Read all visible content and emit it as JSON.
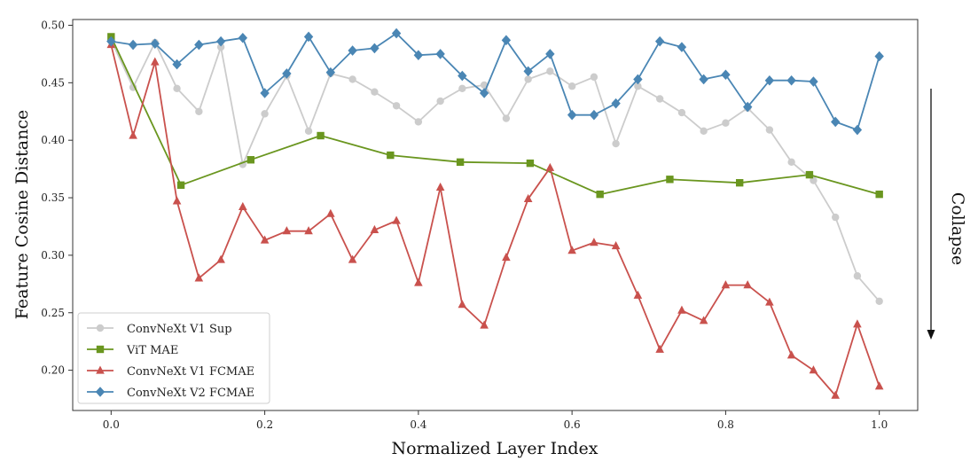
{
  "chart_data": {
    "type": "line",
    "title": "",
    "xlabel": "Normalized Layer Index",
    "ylabel": "Feature Cosine Distance",
    "xlim": [
      -0.05,
      1.05
    ],
    "ylim": [
      0.165,
      0.505
    ],
    "xticks": [
      0.0,
      0.2,
      0.4,
      0.6,
      0.8,
      1.0
    ],
    "xtick_labels": [
      "0.0",
      "0.2",
      "0.4",
      "0.6",
      "0.8",
      "1.0"
    ],
    "yticks": [
      0.2,
      0.25,
      0.3,
      0.35,
      0.4,
      0.45,
      0.5
    ],
    "ytick_labels": [
      "0.20",
      "0.25",
      "0.30",
      "0.35",
      "0.40",
      "0.45",
      "0.50"
    ],
    "grid": false,
    "legend_position": "lower-left",
    "side_annotation": "Collapse",
    "series": [
      {
        "name": "ConvNeXt V1 Sup",
        "color": "#cccccc",
        "marker": "circle",
        "x": [
          0.0,
          0.0286,
          0.0571,
          0.0857,
          0.1143,
          0.1429,
          0.1714,
          0.2,
          0.2286,
          0.2571,
          0.2857,
          0.3143,
          0.3429,
          0.3714,
          0.4,
          0.4286,
          0.4571,
          0.4857,
          0.5143,
          0.5429,
          0.5714,
          0.6,
          0.6286,
          0.6571,
          0.6857,
          0.7143,
          0.7429,
          0.7714,
          0.8,
          0.8286,
          0.8571,
          0.8857,
          0.9143,
          0.9429,
          0.9714,
          1.0
        ],
        "y": [
          0.487,
          0.446,
          0.485,
          0.445,
          0.425,
          0.481,
          0.379,
          0.423,
          0.456,
          0.408,
          0.458,
          0.453,
          0.442,
          0.43,
          0.416,
          0.434,
          0.445,
          0.448,
          0.419,
          0.453,
          0.46,
          0.447,
          0.455,
          0.397,
          0.447,
          0.436,
          0.424,
          0.408,
          0.415,
          0.428,
          0.409,
          0.381,
          0.365,
          0.333,
          0.282,
          0.26
        ]
      },
      {
        "name": "ViT MAE",
        "color": "#6a961f",
        "marker": "square",
        "x": [
          0.0,
          0.0909,
          0.1818,
          0.2727,
          0.3636,
          0.4545,
          0.5455,
          0.6364,
          0.7273,
          0.8182,
          0.9091,
          1.0
        ],
        "y": [
          0.49,
          0.361,
          0.383,
          0.404,
          0.387,
          0.381,
          0.38,
          0.353,
          0.366,
          0.363,
          0.37,
          0.353
        ]
      },
      {
        "name": "ConvNeXt V1 FCMAE",
        "color": "#c9514d",
        "marker": "triangle",
        "x": [
          0.0,
          0.0286,
          0.0571,
          0.0857,
          0.1143,
          0.1429,
          0.1714,
          0.2,
          0.2286,
          0.2571,
          0.2857,
          0.3143,
          0.3429,
          0.3714,
          0.4,
          0.4286,
          0.4571,
          0.4857,
          0.5143,
          0.5429,
          0.5714,
          0.6,
          0.6286,
          0.6571,
          0.6857,
          0.7143,
          0.7429,
          0.7714,
          0.8,
          0.8286,
          0.8571,
          0.8857,
          0.9143,
          0.9429,
          0.9714,
          1.0
        ],
        "y": [
          0.483,
          0.404,
          0.468,
          0.347,
          0.28,
          0.296,
          0.342,
          0.313,
          0.321,
          0.321,
          0.336,
          0.296,
          0.322,
          0.33,
          0.276,
          0.359,
          0.257,
          0.239,
          0.298,
          0.349,
          0.376,
          0.304,
          0.311,
          0.308,
          0.265,
          0.218,
          0.252,
          0.243,
          0.274,
          0.274,
          0.259,
          0.213,
          0.2,
          0.178,
          0.24,
          0.186
        ]
      },
      {
        "name": "ConvNeXt V2 FCMAE",
        "color": "#4a86b4",
        "marker": "diamond",
        "x": [
          0.0,
          0.0286,
          0.0571,
          0.0857,
          0.1143,
          0.1429,
          0.1714,
          0.2,
          0.2286,
          0.2571,
          0.2857,
          0.3143,
          0.3429,
          0.3714,
          0.4,
          0.4286,
          0.4571,
          0.4857,
          0.5143,
          0.5429,
          0.5714,
          0.6,
          0.6286,
          0.6571,
          0.6857,
          0.7143,
          0.7429,
          0.7714,
          0.8,
          0.8286,
          0.8571,
          0.8857,
          0.9143,
          0.9429,
          0.9714,
          1.0
        ],
        "y": [
          0.486,
          0.483,
          0.484,
          0.466,
          0.483,
          0.486,
          0.489,
          0.441,
          0.458,
          0.49,
          0.459,
          0.478,
          0.48,
          0.493,
          0.474,
          0.475,
          0.456,
          0.441,
          0.487,
          0.46,
          0.475,
          0.422,
          0.422,
          0.432,
          0.453,
          0.486,
          0.481,
          0.453,
          0.457,
          0.429,
          0.452,
          0.452,
          0.451,
          0.416,
          0.409,
          0.473
        ]
      }
    ]
  }
}
